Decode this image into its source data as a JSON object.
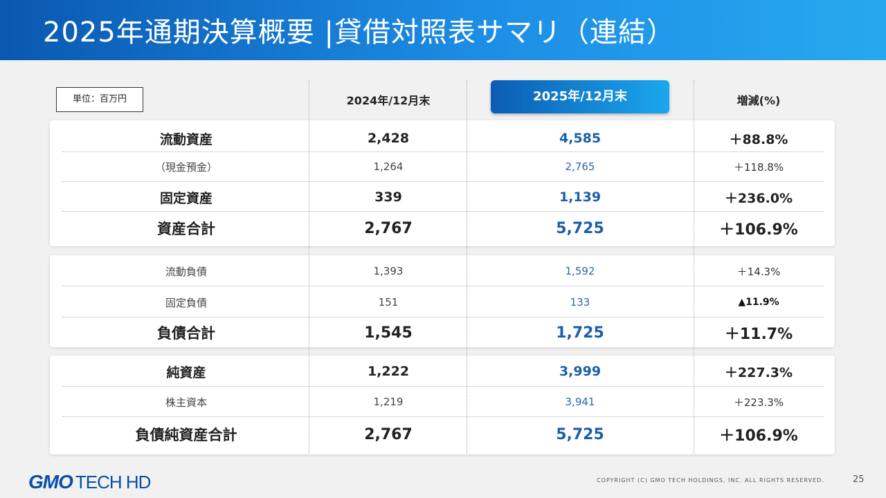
{
  "header": {
    "title": "2025年通期決算概要 |貸借対照表サマリ（連結）"
  },
  "unit_label": "単位：百万円",
  "columns": {
    "prev": "2024年/12月末",
    "curr": "2025年/12月末",
    "change": "増減(%)"
  },
  "assets": [
    {
      "label": "流動資産",
      "prev": "2,428",
      "curr": "4,585",
      "change": "＋88.8%"
    },
    {
      "label": "（現金預金）",
      "prev": "1,264",
      "curr": "2,765",
      "change": "＋118.8%"
    },
    {
      "label": "固定資産",
      "prev": "339",
      "curr": "1,139",
      "change": "＋236.0%"
    },
    {
      "label": "資産合計",
      "prev": "2,767",
      "curr": "5,725",
      "change": "＋106.9%"
    }
  ],
  "liabilities": [
    {
      "label": "流動負債",
      "prev": "1,393",
      "curr": "1,592",
      "change": "＋14.3%"
    },
    {
      "label": "固定負債",
      "prev": "151",
      "curr": "133",
      "change": "▲11.9%"
    },
    {
      "label": "負債合計",
      "prev": "1,545",
      "curr": "1,725",
      "change": "＋11.7%"
    }
  ],
  "equity": [
    {
      "label": "純資産",
      "prev": "1,222",
      "curr": "3,999",
      "change": "＋227.3%"
    },
    {
      "label": "株主資本",
      "prev": "1,219",
      "curr": "3,941",
      "change": "＋223.3%"
    },
    {
      "label": "負債純資産合計",
      "prev": "2,767",
      "curr": "5,725",
      "change": "＋106.9%"
    }
  ],
  "footer": {
    "logo_gmo": "GMO",
    "logo_tech": "TECH HD",
    "copyright": "COPYRIGHT (C)  GMO TECH HOLDINGS, INC. ALL RIGHTS RESERVED.",
    "page": "25"
  },
  "colors": {
    "accent": "#1c5ea8",
    "header_start": "#0a58b0",
    "header_end": "#27a8ee"
  }
}
